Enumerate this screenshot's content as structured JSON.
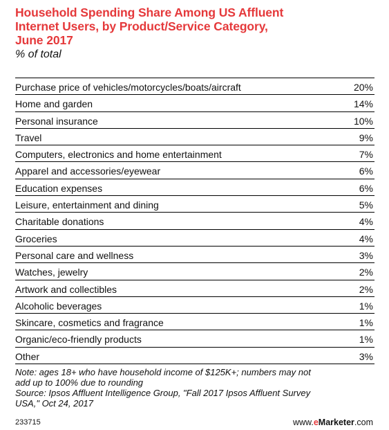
{
  "header": {
    "title_lines": [
      "Household Spending Share Among US Affluent",
      "Internet Users, by Product/Service Category,",
      "June 2017"
    ],
    "subtitle": "% of total"
  },
  "chart_data": {
    "type": "table",
    "title": "Household Spending Share Among US Affluent Internet Users, by Product/Service Category, June 2017",
    "subtitle": "% of total",
    "unit": "%",
    "categories": [
      "Purchase price of vehicles/motorcycles/boats/aircraft",
      "Home and garden",
      "Personal insurance",
      "Travel",
      "Computers, electronics and home entertainment",
      "Apparel and accessories/eyewear",
      "Education expenses",
      "Leisure, entertainment and dining",
      "Charitable donations",
      "Groceries",
      "Personal care and wellness",
      "Watches, jewelry",
      "Artwork and collectibles",
      "Alcoholic beverages",
      "Skincare, cosmetics and fragrance",
      "Organic/eco-friendly products",
      "Other"
    ],
    "values": [
      20,
      14,
      10,
      9,
      7,
      6,
      6,
      5,
      4,
      4,
      3,
      2,
      2,
      1,
      1,
      1,
      3
    ],
    "value_labels": [
      "20%",
      "14%",
      "10%",
      "9%",
      "7%",
      "6%",
      "6%",
      "5%",
      "4%",
      "4%",
      "3%",
      "2%",
      "2%",
      "1%",
      "1%",
      "1%",
      "3%"
    ]
  },
  "notes": {
    "note_lines": [
      "Note: ages 18+ who have household income of $125K+; numbers may not",
      "add up to 100% due to rounding"
    ],
    "source_lines": [
      "Source: Ipsos Affluent Intelligence Group, \"Fall 2017 Ipsos Affluent Survey",
      "USA,\" Oct 24, 2017"
    ]
  },
  "footer": {
    "chart_id": "233715",
    "brand_prefix": "www.",
    "brand_e": "e",
    "brand_marketer": "Marketer",
    "brand_suffix": ".com"
  },
  "colors": {
    "title": "#e5393b",
    "text": "#111111",
    "rule": "#000000"
  }
}
